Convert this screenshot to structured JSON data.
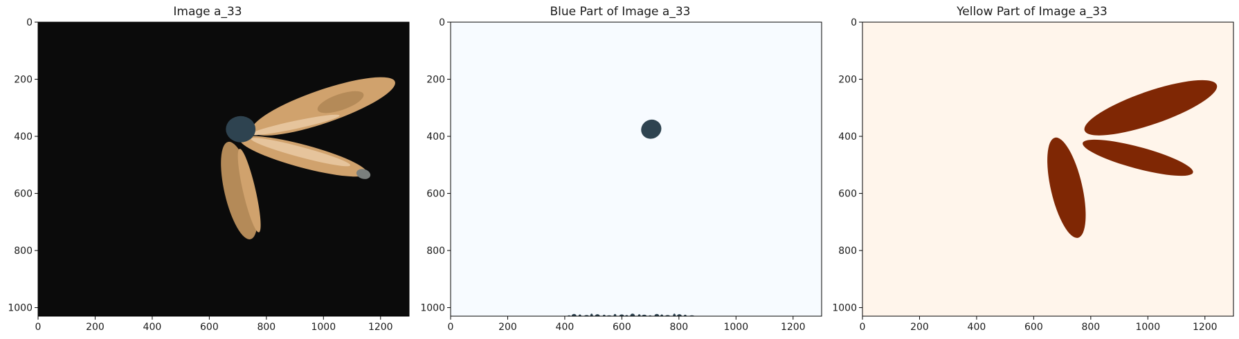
{
  "chart_data": [
    {
      "type": "image",
      "title": "Image a_33",
      "xlim": [
        0,
        1300
      ],
      "ylim": [
        1030,
        0
      ],
      "xticks": [
        0,
        200,
        400,
        600,
        800,
        1000,
        1200
      ],
      "yticks": [
        0,
        200,
        400,
        600,
        800,
        1000
      ],
      "colors": {
        "background": "#0b0b0b",
        "main": "#d0a26d",
        "dark": "#b48a58",
        "light": "#e6c49c",
        "blue": "#2e4350",
        "gray": "#7a7f7d",
        "rim": "#b36a3a"
      },
      "ellipses": [
        {
          "name": "upper-petal",
          "cx": 1000,
          "cy": 295,
          "rx": 265,
          "ry": 58,
          "rot": -19,
          "color": "main"
        },
        {
          "name": "upper-petal-patch",
          "cx": 1060,
          "cy": 280,
          "rx": 85,
          "ry": 28,
          "rot": -19,
          "color": "dark"
        },
        {
          "name": "upper-petal-highlight",
          "cx": 900,
          "cy": 360,
          "rx": 160,
          "ry": 14,
          "rot": -12,
          "color": "light"
        },
        {
          "name": "middle-petal",
          "cx": 930,
          "cy": 470,
          "rx": 230,
          "ry": 40,
          "rot": 15,
          "color": "main"
        },
        {
          "name": "middle-petal-highlight",
          "cx": 920,
          "cy": 455,
          "rx": 180,
          "ry": 18,
          "rot": 15,
          "color": "light"
        },
        {
          "name": "lower-petal",
          "cx": 705,
          "cy": 590,
          "rx": 52,
          "ry": 175,
          "rot": -13,
          "color": "dark"
        },
        {
          "name": "lower-petal-inner",
          "cx": 740,
          "cy": 590,
          "rx": 22,
          "ry": 150,
          "rot": -13,
          "color": "main"
        },
        {
          "name": "blue-blob",
          "cx": 710,
          "cy": 375,
          "rx": 52,
          "ry": 46,
          "rot": 0,
          "color": "blue"
        },
        {
          "name": "gray-tip",
          "cx": 1140,
          "cy": 532,
          "rx": 25,
          "ry": 17,
          "rot": 15,
          "color": "gray"
        }
      ]
    },
    {
      "type": "image",
      "title": "Blue Part of Image a_33",
      "xlim": [
        0,
        1300
      ],
      "ylim": [
        1030,
        0
      ],
      "xticks": [
        0,
        200,
        400,
        600,
        800,
        1000,
        1200
      ],
      "yticks": [
        0,
        200,
        400,
        600,
        800,
        1000
      ],
      "colors": {
        "background": "#f7fbff",
        "blue": "#2e4350"
      },
      "ellipses": [
        {
          "name": "blue-blob",
          "cx": 703,
          "cy": 375,
          "rx": 36,
          "ry": 33,
          "rot": -25,
          "color": "blue"
        }
      ],
      "noise": {
        "x_from": 410,
        "x_to": 850,
        "y": 1030,
        "color": "blue"
      }
    },
    {
      "type": "image",
      "title": "Yellow Part of Image a_33",
      "xlim": [
        0,
        1300
      ],
      "ylim": [
        1030,
        0
      ],
      "xticks": [
        0,
        200,
        400,
        600,
        800,
        1000,
        1200
      ],
      "yticks": [
        0,
        200,
        400,
        600,
        800,
        1000
      ],
      "colors": {
        "background": "#fff5eb",
        "yellow": "#7f2704"
      },
      "ellipses": [
        {
          "name": "upper-petal",
          "cx": 1010,
          "cy": 300,
          "rx": 245,
          "ry": 58,
          "rot": -19,
          "color": "yellow"
        },
        {
          "name": "middle-petal",
          "cx": 965,
          "cy": 475,
          "rx": 200,
          "ry": 38,
          "rot": 15,
          "color": "yellow"
        },
        {
          "name": "lower-petal",
          "cx": 715,
          "cy": 580,
          "rx": 55,
          "ry": 180,
          "rot": -13,
          "color": "yellow"
        }
      ]
    }
  ]
}
